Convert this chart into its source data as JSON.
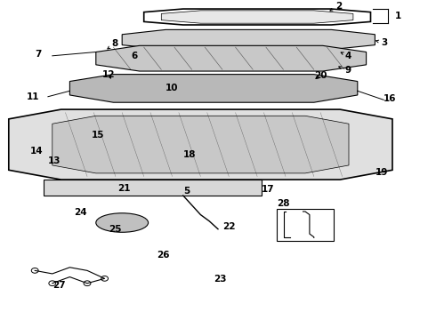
{
  "bg_color": "#ffffff",
  "fig_width": 4.9,
  "fig_height": 3.6,
  "dpi": 100,
  "line_color": "#000000",
  "label_fontsize": 7.5,
  "label_fontweight": "bold"
}
